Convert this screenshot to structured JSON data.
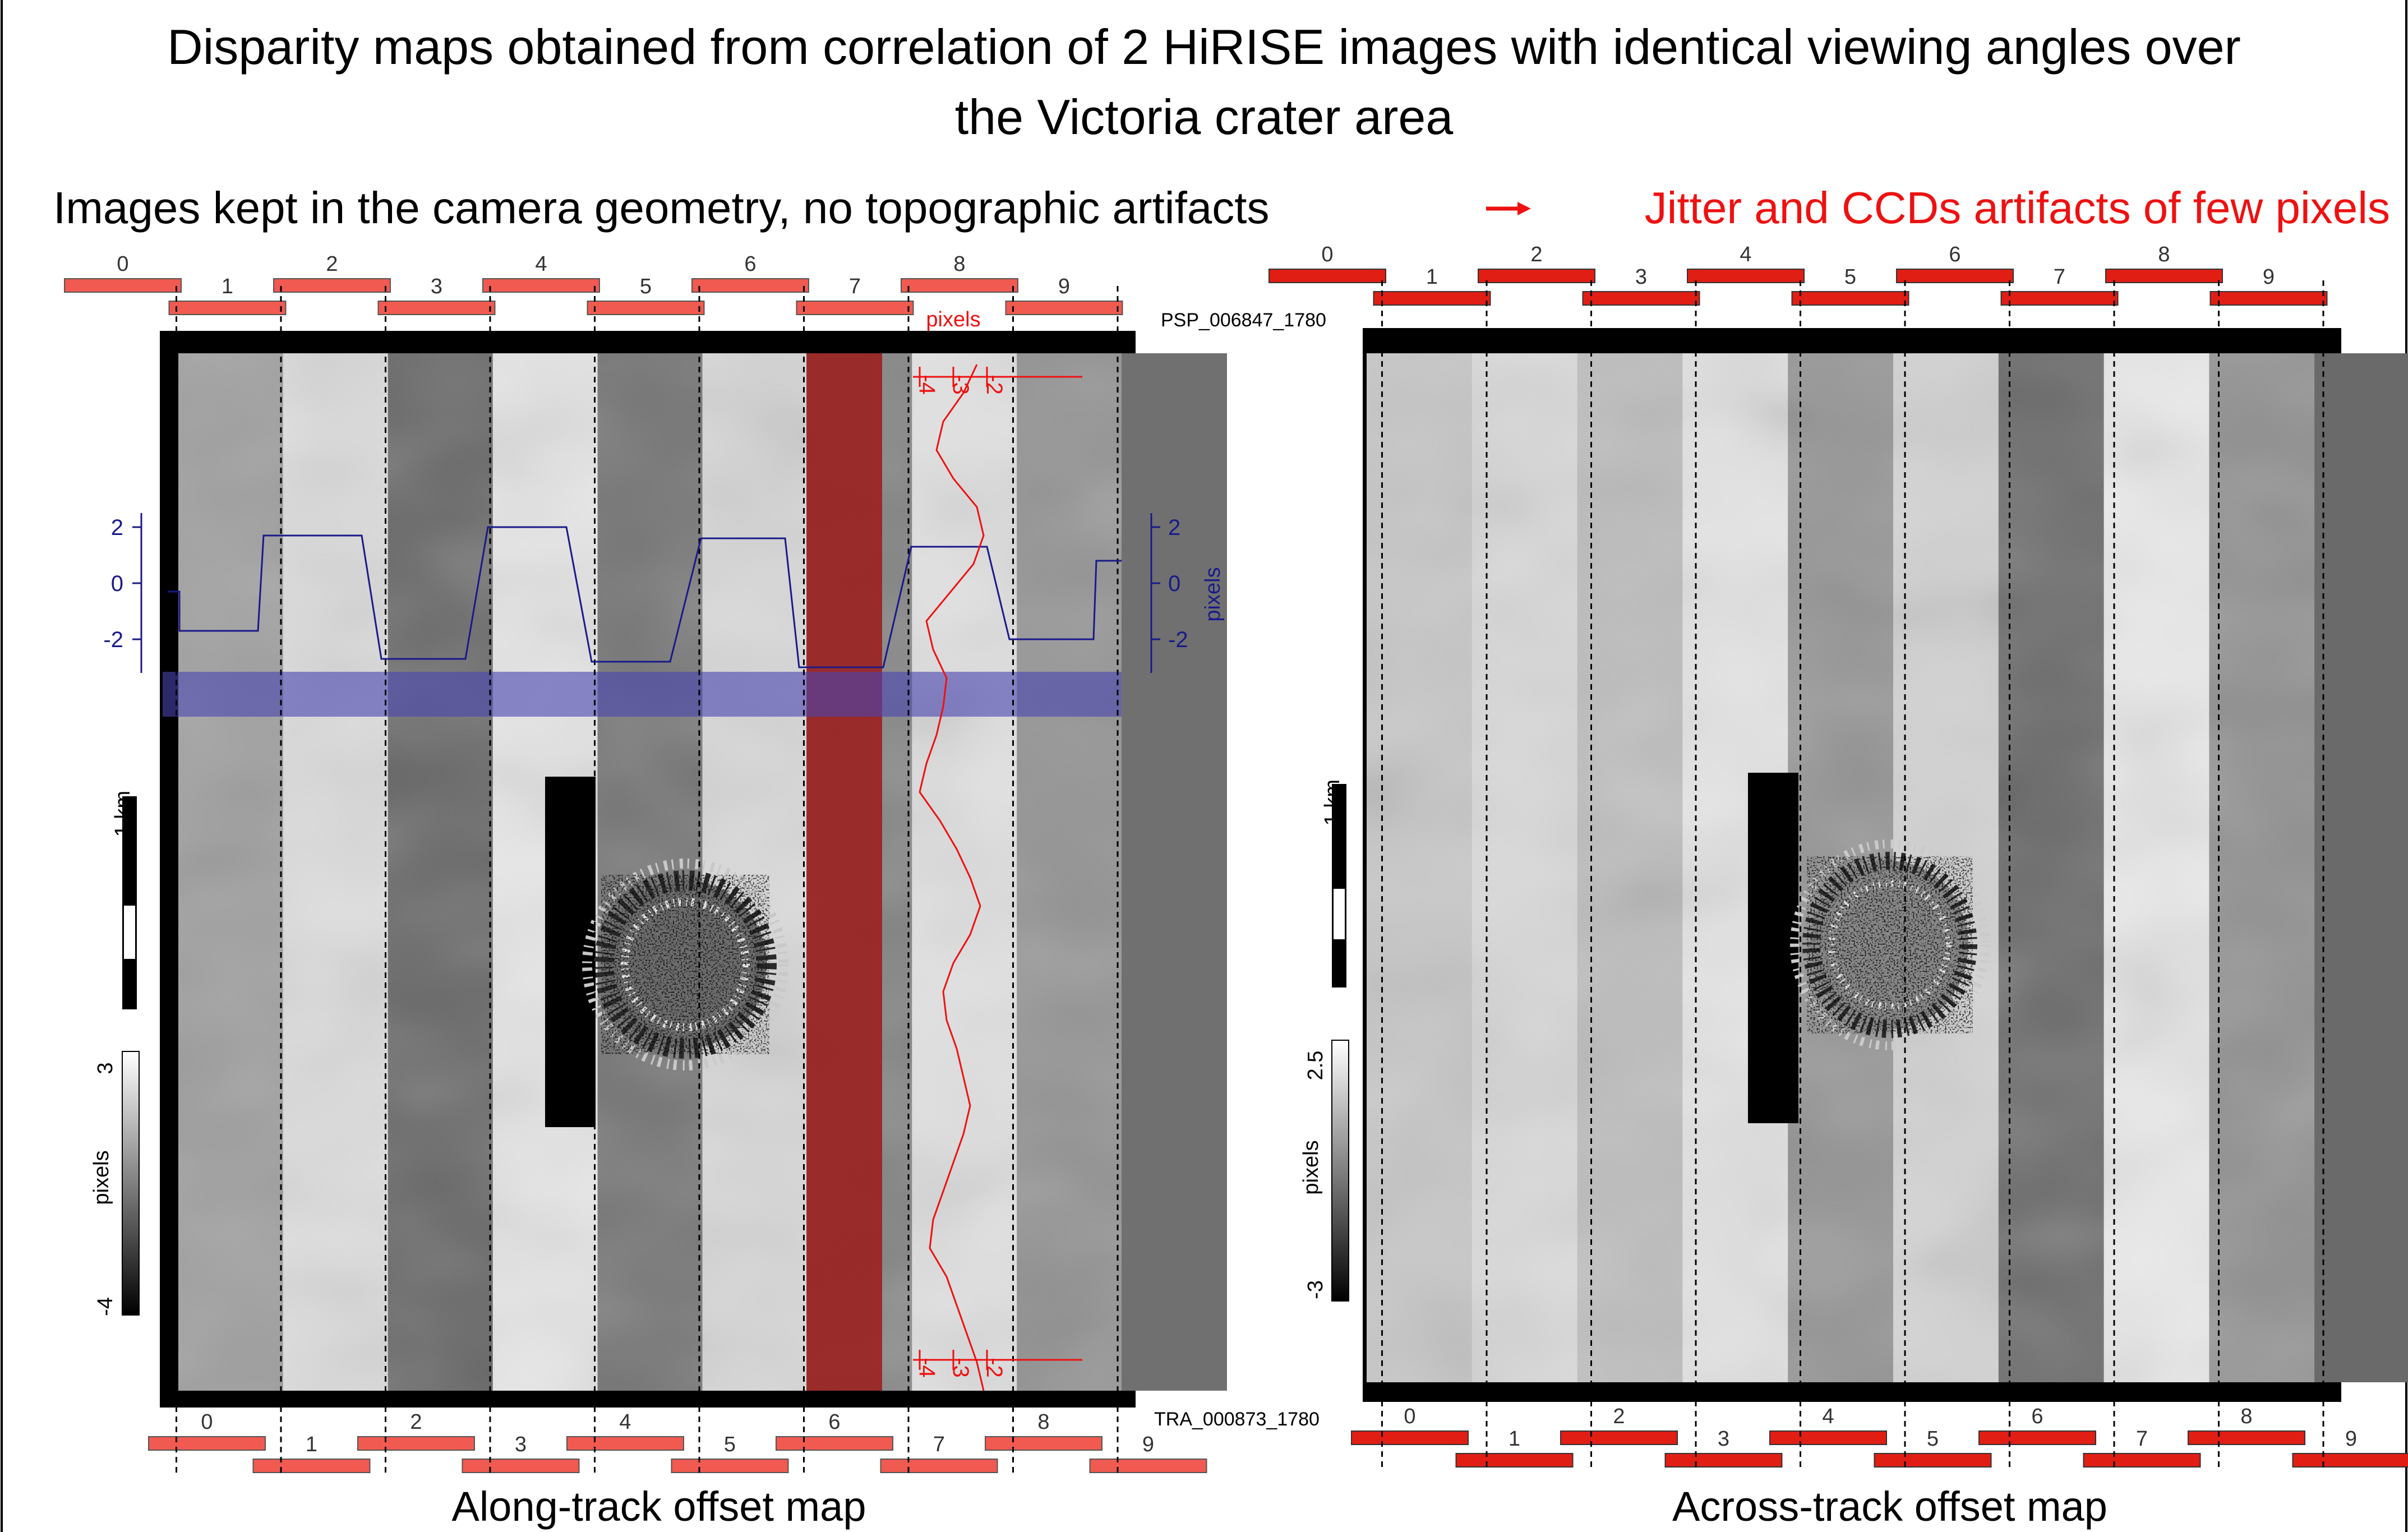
{
  "title": {
    "line1": "Disparity maps obtained from correlation of 2 HiRISE images with identical viewing angles over",
    "line2": "the Victoria crater area"
  },
  "subtitle": {
    "black": "Images kept in the camera geometry, no topographic artifacts",
    "red": "Jitter and CCDs artifacts of few pixels"
  },
  "image_labels": {
    "top": "PSP_006847_1780",
    "bottom": "TRA_000873_1780"
  },
  "ccd_numbers": [
    "0",
    "1",
    "2",
    "3",
    "4",
    "5",
    "6",
    "7",
    "8",
    "9"
  ],
  "left_panel": {
    "caption": "Along-track offset map",
    "scale_label": "1 km",
    "colorbar": {
      "label": "pixels",
      "max": "3",
      "min": "-4"
    },
    "horizontal_profile": {
      "axis_label": "pixels",
      "ticks": [
        "2",
        "0",
        "-2"
      ],
      "tick_values": [
        2,
        0,
        -2
      ]
    },
    "vertical_profile": {
      "axis_label": "pixels",
      "ticks": [
        "-4",
        "-3",
        "-2"
      ],
      "tick_values": [
        -4,
        -3,
        -2
      ]
    }
  },
  "right_panel": {
    "caption": "Across-track offset map",
    "scale_label": "1 km",
    "colorbar": {
      "label": "pixels",
      "max": "2.5",
      "min": "-3"
    }
  },
  "colors": {
    "ccd_bar": "#f05a50",
    "ccd_bar_right": "#e11e14",
    "profile_red": "#ee1111",
    "profile_blue": "#1a1a8a",
    "red_band": "#9b1a1a",
    "blue_band": "#4a45b0",
    "subtitle_red": "#ee1111"
  }
}
